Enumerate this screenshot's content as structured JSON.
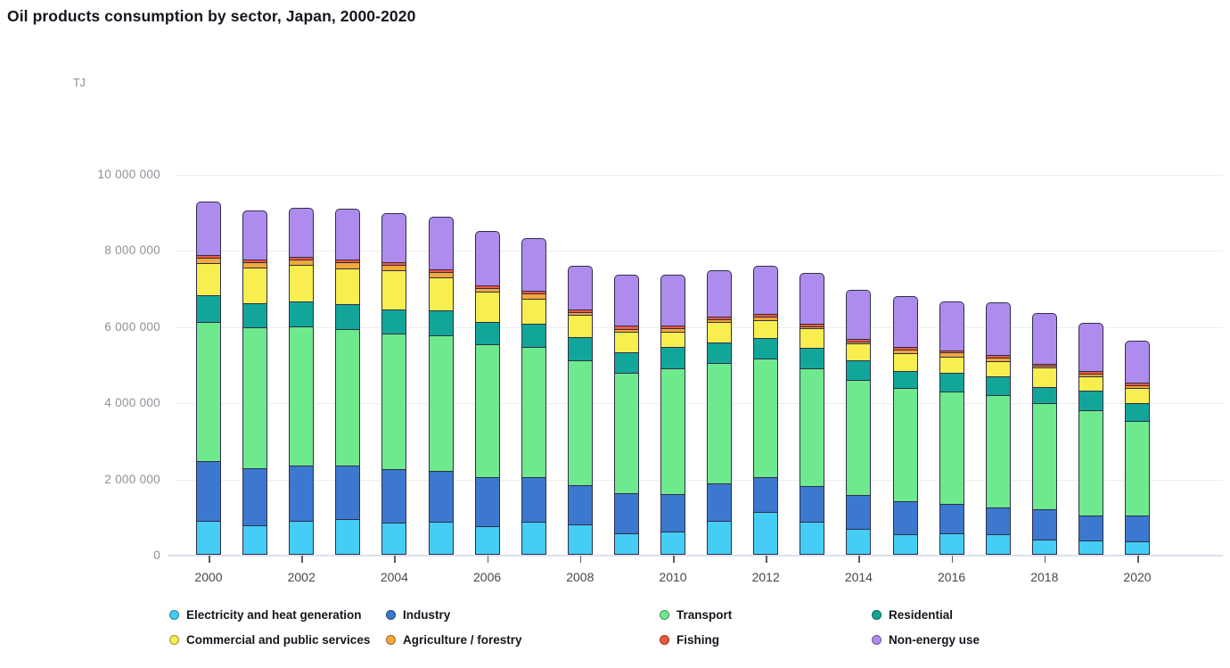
{
  "page": {
    "title": "Oil products consumption by sector, Japan, 2000-2020",
    "unit_label": "TJ"
  },
  "chart_data": {
    "type": "bar",
    "stacked": true,
    "title": "Oil products consumption by sector, Japan, 2000-2020",
    "ylabel": "TJ",
    "xlabel": "",
    "grid": true,
    "legend_position": "bottom",
    "ylim": [
      0,
      10000000
    ],
    "yticks": [
      0,
      2000000,
      4000000,
      6000000,
      8000000,
      10000000
    ],
    "ytick_labels": [
      "0",
      "2 000 000",
      "4 000 000",
      "6 000 000",
      "8 000 000",
      "10 000 000"
    ],
    "x": [
      2000,
      2001,
      2002,
      2003,
      2004,
      2005,
      2006,
      2007,
      2008,
      2009,
      2010,
      2011,
      2012,
      2013,
      2014,
      2015,
      2016,
      2017,
      2018,
      2019,
      2020
    ],
    "x_tick_labels": [
      "2000",
      "2002",
      "2004",
      "2006",
      "2008",
      "2010",
      "2012",
      "2014",
      "2016",
      "2018",
      "2020"
    ],
    "series": [
      {
        "name": "Electricity and heat generation",
        "color": "#45cdf5",
        "values": [
          900000,
          770000,
          880000,
          940000,
          840000,
          860000,
          740000,
          870000,
          790000,
          570000,
          610000,
          900000,
          1120000,
          860000,
          670000,
          550000,
          570000,
          530000,
          410000,
          370000,
          350000
        ]
      },
      {
        "name": "Industry",
        "color": "#3c78cf",
        "values": [
          1600000,
          1540000,
          1490000,
          1430000,
          1440000,
          1370000,
          1320000,
          1210000,
          1080000,
          1070000,
          1020000,
          1000000,
          950000,
          980000,
          930000,
          880000,
          800000,
          740000,
          810000,
          700000,
          720000
        ]
      },
      {
        "name": "Transport",
        "color": "#6fe98e",
        "values": [
          3680000,
          3720000,
          3690000,
          3630000,
          3590000,
          3590000,
          3530000,
          3450000,
          3310000,
          3210000,
          3340000,
          3210000,
          3150000,
          3110000,
          3050000,
          3010000,
          2990000,
          2990000,
          2830000,
          2800000,
          2510000
        ]
      },
      {
        "name": "Residential",
        "color": "#12a69b",
        "values": [
          740000,
          680000,
          680000,
          680000,
          680000,
          690000,
          610000,
          630000,
          630000,
          570000,
          580000,
          560000,
          570000,
          570000,
          550000,
          490000,
          510000,
          530000,
          450000,
          530000,
          510000
        ]
      },
      {
        "name": "Commercial and public services",
        "color": "#f8ee50",
        "values": [
          880000,
          970000,
          1000000,
          960000,
          1050000,
          900000,
          840000,
          700000,
          620000,
          560000,
          440000,
          580000,
          500000,
          550000,
          470000,
          490000,
          450000,
          430000,
          540000,
          420000,
          410000
        ]
      },
      {
        "name": "Agriculture / forestry",
        "color": "#f3a73c",
        "values": [
          170000,
          170000,
          180000,
          200000,
          180000,
          170000,
          120000,
          160000,
          100000,
          120000,
          130000,
          100000,
          120000,
          90000,
          100000,
          140000,
          150000,
          130000,
          100000,
          110000,
          120000
        ]
      },
      {
        "name": "Fishing",
        "color": "#ee5a3e",
        "values": [
          90000,
          90000,
          90000,
          110000,
          110000,
          100000,
          110000,
          120000,
          110000,
          110000,
          90000,
          110000,
          100000,
          100000,
          90000,
          90000,
          80000,
          90000,
          80000,
          80000,
          100000
        ]
      },
      {
        "name": "Non-energy use",
        "color": "#ae8cee",
        "values": [
          1440000,
          1330000,
          1330000,
          1360000,
          1310000,
          1420000,
          1460000,
          1400000,
          1170000,
          1370000,
          1370000,
          1250000,
          1300000,
          1370000,
          1330000,
          1380000,
          1340000,
          1410000,
          1350000,
          1320000,
          1140000
        ]
      }
    ]
  }
}
